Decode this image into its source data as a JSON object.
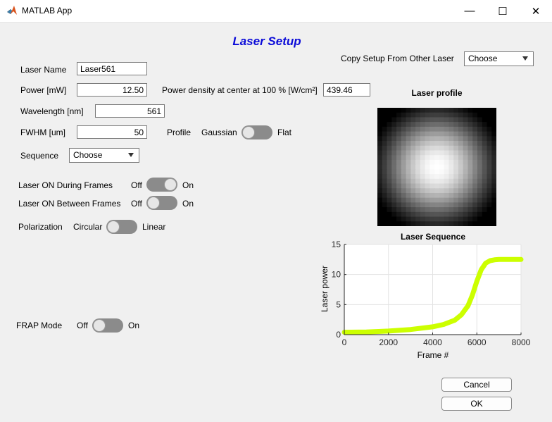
{
  "window": {
    "title": "MATLAB App",
    "minimize": "—",
    "maximize": "☐",
    "close": "✕"
  },
  "heading": "Laser Setup",
  "copy_setup": {
    "label": "Copy Setup From Other Laser",
    "value": "Choose"
  },
  "laser_name": {
    "label": "Laser Name",
    "value": "Laser561"
  },
  "power": {
    "label": "Power [mW]",
    "value": "12.50"
  },
  "power_density": {
    "label": "Power density at center at 100 % [W/cm²]",
    "value": "439.46"
  },
  "wavelength": {
    "label": "Wavelength [nm]",
    "value": "561"
  },
  "fwhm": {
    "label": "FWHM [um]",
    "value": "50"
  },
  "profile": {
    "label": "Profile",
    "off_label": "Gaussian",
    "on_label": "Flat",
    "state": "Gaussian"
  },
  "sequence": {
    "label": "Sequence",
    "value": "Choose"
  },
  "laser_on_during": {
    "label": "Laser ON During Frames",
    "off_label": "Off",
    "on_label": "On",
    "state": "On"
  },
  "laser_on_between": {
    "label": "Laser ON Between Frames",
    "off_label": "Off",
    "on_label": "On",
    "state": "Off"
  },
  "polarization": {
    "label": "Polarization",
    "off_label": "Circular",
    "on_label": "Linear",
    "state": "Circular"
  },
  "frap": {
    "label": "FRAP Mode",
    "off_label": "Off",
    "on_label": "On",
    "state": "Off"
  },
  "buttons": {
    "cancel": "Cancel",
    "ok": "OK"
  },
  "laser_profile": {
    "title": "Laser profile",
    "profile_type": "gaussian",
    "grid": 25
  },
  "chart_data": {
    "type": "line",
    "title": "Laser Sequence",
    "xlabel": "Frame #",
    "ylabel": "Laser power",
    "xlim": [
      0,
      8000
    ],
    "ylim": [
      0,
      15
    ],
    "xticks": [
      0,
      2000,
      4000,
      6000,
      8000
    ],
    "yticks": [
      0,
      5,
      10,
      15
    ],
    "grid": true,
    "series": [
      {
        "color": "#ccff00",
        "x": [
          0,
          1000,
          2000,
          3000,
          4000,
          4500,
          5000,
          5300,
          5600,
          5800,
          6000,
          6200,
          6400,
          6600,
          6800,
          7000,
          7500,
          8000
        ],
        "y": [
          0.4,
          0.45,
          0.6,
          0.85,
          1.3,
          1.7,
          2.4,
          3.3,
          4.8,
          6.6,
          8.9,
          10.8,
          11.9,
          12.3,
          12.45,
          12.5,
          12.5,
          12.5
        ]
      }
    ]
  }
}
